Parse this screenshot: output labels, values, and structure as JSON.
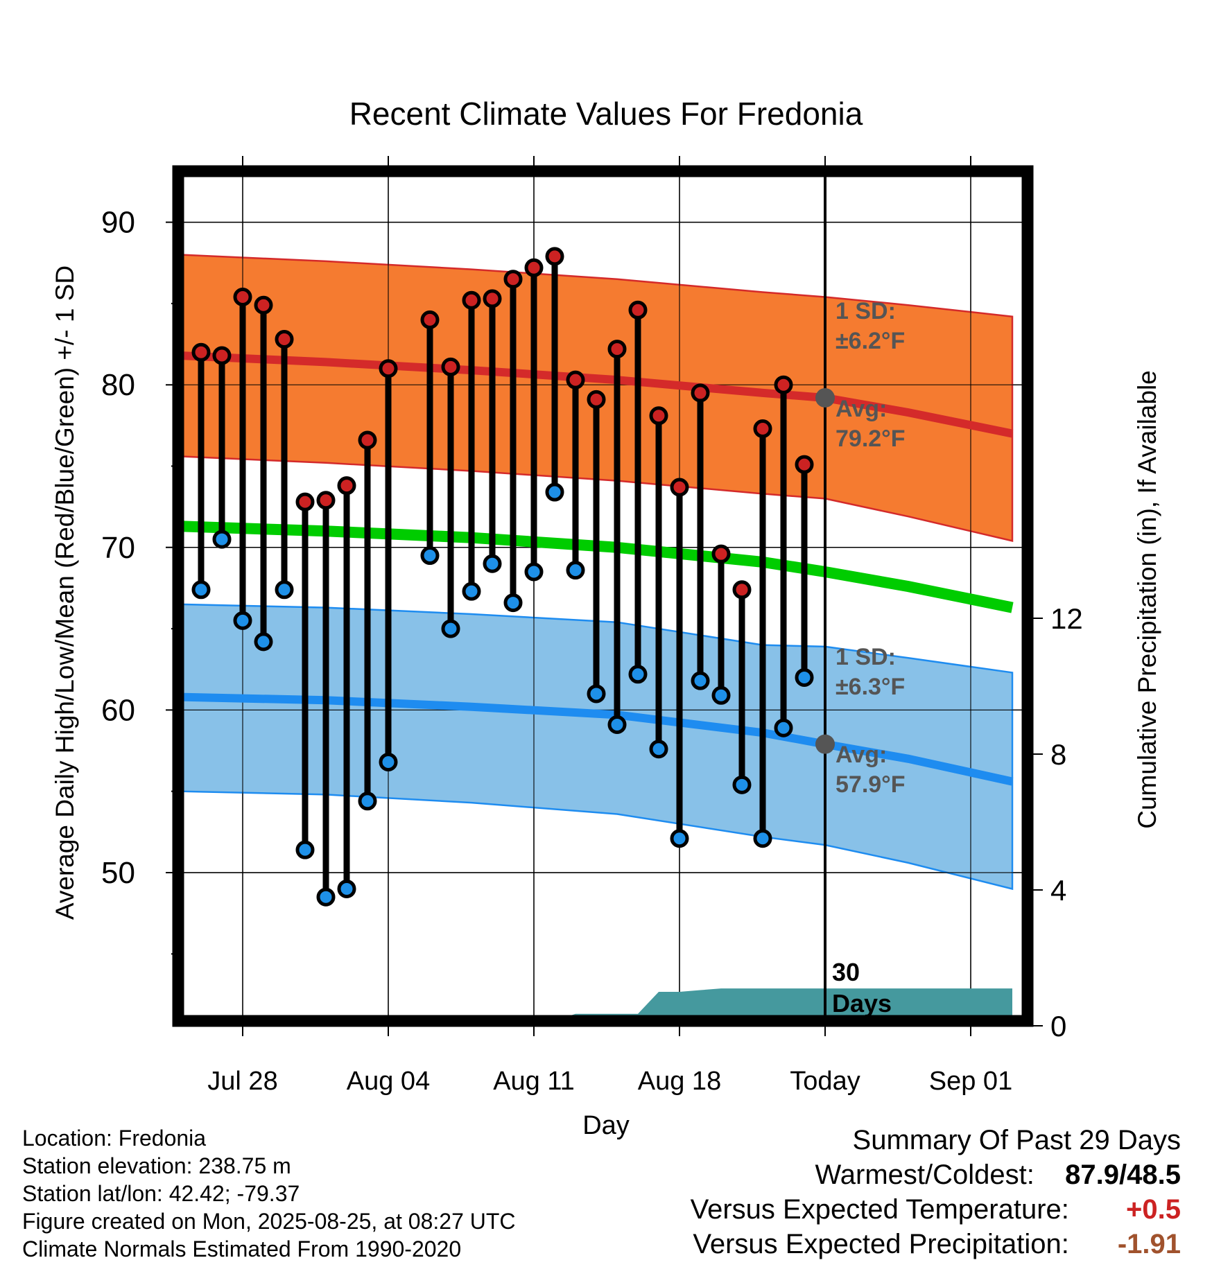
{
  "chart_data": {
    "type": "line",
    "title": "Recent Climate Values For Fredonia",
    "xlabel": "Day",
    "ylabel": "Average Daily High/Low/Mean (Red/Blue/Green) +/- 1 SD",
    "ylabel_right": "Cumulative Precipitation (in), If Available",
    "x_tick_labels": [
      "Jul 28",
      "Aug 04",
      "Aug 11",
      "Aug 18",
      "Today",
      "Sep 01"
    ],
    "x_range_days": [
      -31,
      9
    ],
    "today_offset": 0,
    "ylim": [
      40,
      93
    ],
    "y_ticks": [
      50,
      60,
      70,
      80,
      90
    ],
    "y2lim": [
      0,
      14.5
    ],
    "y2_ticks": [
      0,
      4,
      8,
      12
    ],
    "normals": {
      "x": [
        -31,
        -24,
        -17,
        -10,
        -3,
        0,
        4,
        9
      ],
      "avg_high": [
        81.8,
        81.4,
        80.9,
        80.3,
        79.5,
        79.2,
        78.3,
        77.0
      ],
      "avg_high_upper": [
        88.0,
        87.6,
        87.1,
        86.5,
        85.7,
        85.4,
        84.9,
        84.2
      ],
      "avg_high_lower": [
        75.6,
        75.2,
        74.7,
        74.1,
        73.3,
        73.0,
        71.9,
        70.4
      ],
      "avg_mean": [
        71.3,
        71.0,
        70.6,
        70.0,
        69.1,
        68.5,
        67.6,
        66.3
      ],
      "avg_low": [
        60.8,
        60.6,
        60.2,
        59.7,
        58.6,
        57.9,
        57.0,
        55.6
      ],
      "avg_low_upper": [
        66.5,
        66.3,
        65.9,
        65.4,
        64.0,
        63.9,
        63.2,
        62.3
      ],
      "avg_low_lower": [
        55.0,
        54.8,
        54.3,
        53.6,
        52.2,
        51.7,
        50.6,
        49.0
      ]
    },
    "daily": {
      "x": [
        -30,
        -29,
        -28,
        -27,
        -26,
        -25,
        -24,
        -23,
        -22,
        -21,
        -19,
        -18,
        -17,
        -16,
        -15,
        -14,
        -13,
        -12,
        -11,
        -10,
        -9,
        -8,
        -7,
        -6,
        -5,
        -4,
        -3,
        -2,
        -1
      ],
      "high": [
        82.0,
        81.8,
        85.4,
        84.9,
        82.8,
        72.8,
        72.9,
        73.8,
        76.6,
        81.0,
        84.0,
        81.1,
        85.2,
        85.3,
        86.5,
        87.2,
        87.9,
        80.3,
        79.1,
        82.2,
        84.6,
        78.1,
        73.7,
        79.5,
        69.6,
        67.4,
        77.3,
        80.0,
        75.1
      ],
      "low": [
        67.4,
        70.5,
        65.5,
        64.2,
        67.4,
        51.4,
        48.5,
        49.0,
        54.4,
        56.8,
        69.5,
        65.0,
        67.3,
        69.0,
        66.6,
        68.5,
        73.4,
        68.6,
        61.0,
        59.1,
        62.2,
        57.6,
        52.1,
        61.8,
        60.9,
        55.4,
        52.1,
        58.9,
        62.0
      ]
    },
    "precip": {
      "x": [
        -31,
        -26.5,
        -26,
        -14,
        -13,
        -12,
        -9,
        -8,
        -7,
        -6,
        -5,
        9
      ],
      "values": [
        0,
        0,
        0.15,
        0.15,
        0.15,
        0.35,
        0.35,
        1.0,
        1.0,
        1.05,
        1.1,
        1.1
      ]
    },
    "annotations": {
      "high_sd": "1 SD:",
      "high_sd_value": "±6.2°F",
      "high_avg": "Avg:",
      "high_avg_value": "79.2°F",
      "low_sd": "1 SD:",
      "low_sd_value": "±6.3°F",
      "low_avg": "Avg:",
      "low_avg_value": "57.9°F",
      "days_num": "30",
      "days_word": "Days"
    },
    "colors": {
      "high_band": "#f57b30",
      "high_line": "#d42a2a",
      "mean_line": "#00cc00",
      "low_band": "#88c1e8",
      "low_line": "#1e8cf0",
      "high_dot": "#cc2222",
      "low_dot": "#1e90e8",
      "precip": "#45999e",
      "today_marker": "#555555",
      "annotation_text": "#555555"
    }
  },
  "footer": {
    "location": "Location: Fredonia",
    "elevation": "Station elevation: 238.75 m",
    "latlon": "Station lat/lon: 42.42; -79.37",
    "created": "Figure created on Mon, 2025-08-25, at 08:27 UTC",
    "normals": "Climate Normals Estimated From 1990-2020"
  },
  "summary": {
    "heading": "Summary Of Past 29 Days",
    "warm_cold_label": "Warmest/Coldest:",
    "warm_cold_value": "87.9/48.5",
    "temp_label": "Versus Expected Temperature:",
    "temp_value": "+0.5",
    "temp_color": "#cc2222",
    "precip_label": "Versus Expected Precipitation:",
    "precip_value": "-1.91",
    "precip_color": "#a0522d"
  }
}
